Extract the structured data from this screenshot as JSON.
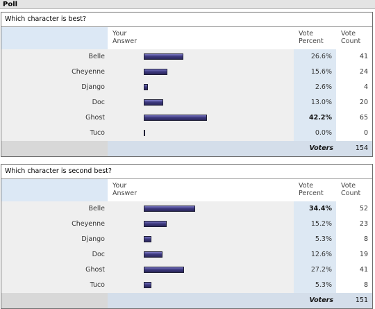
{
  "page_title": "Poll",
  "headers": {
    "answer_line1": "Your",
    "answer_line2": "Answer",
    "pct_line1": "Vote",
    "pct_line2": "Percent",
    "cnt_line1": "Vote",
    "cnt_line2": "Count",
    "voters": "Voters"
  },
  "colors": {
    "bar_fill": "#3e3a80",
    "percent_column": "#dde8f3",
    "header_name_cell": "#dce8f5"
  },
  "polls": [
    {
      "question": "Which character is best?",
      "voters": "154",
      "options": [
        {
          "name": "Belle",
          "percent": "26.6%",
          "count": "41",
          "share": 0.266,
          "bold": false
        },
        {
          "name": "Cheyenne",
          "percent": "15.6%",
          "count": "24",
          "share": 0.156,
          "bold": false
        },
        {
          "name": "Django",
          "percent": "2.6%",
          "count": "4",
          "share": 0.026,
          "bold": false
        },
        {
          "name": "Doc",
          "percent": "13.0%",
          "count": "20",
          "share": 0.13,
          "bold": false
        },
        {
          "name": "Ghost",
          "percent": "42.2%",
          "count": "65",
          "share": 0.422,
          "bold": true
        },
        {
          "name": "Tuco",
          "percent": "0.0%",
          "count": "0",
          "share": 0.0,
          "bold": false
        }
      ]
    },
    {
      "question": "Which character is second best?",
      "voters": "151",
      "options": [
        {
          "name": "Belle",
          "percent": "34.4%",
          "count": "52",
          "share": 0.344,
          "bold": true
        },
        {
          "name": "Cheyenne",
          "percent": "15.2%",
          "count": "23",
          "share": 0.152,
          "bold": false
        },
        {
          "name": "Django",
          "percent": "5.3%",
          "count": "8",
          "share": 0.053,
          "bold": false
        },
        {
          "name": "Doc",
          "percent": "12.6%",
          "count": "19",
          "share": 0.126,
          "bold": false
        },
        {
          "name": "Ghost",
          "percent": "27.2%",
          "count": "41",
          "share": 0.272,
          "bold": false
        },
        {
          "name": "Tuco",
          "percent": "5.3%",
          "count": "8",
          "share": 0.053,
          "bold": false
        }
      ]
    }
  ]
}
